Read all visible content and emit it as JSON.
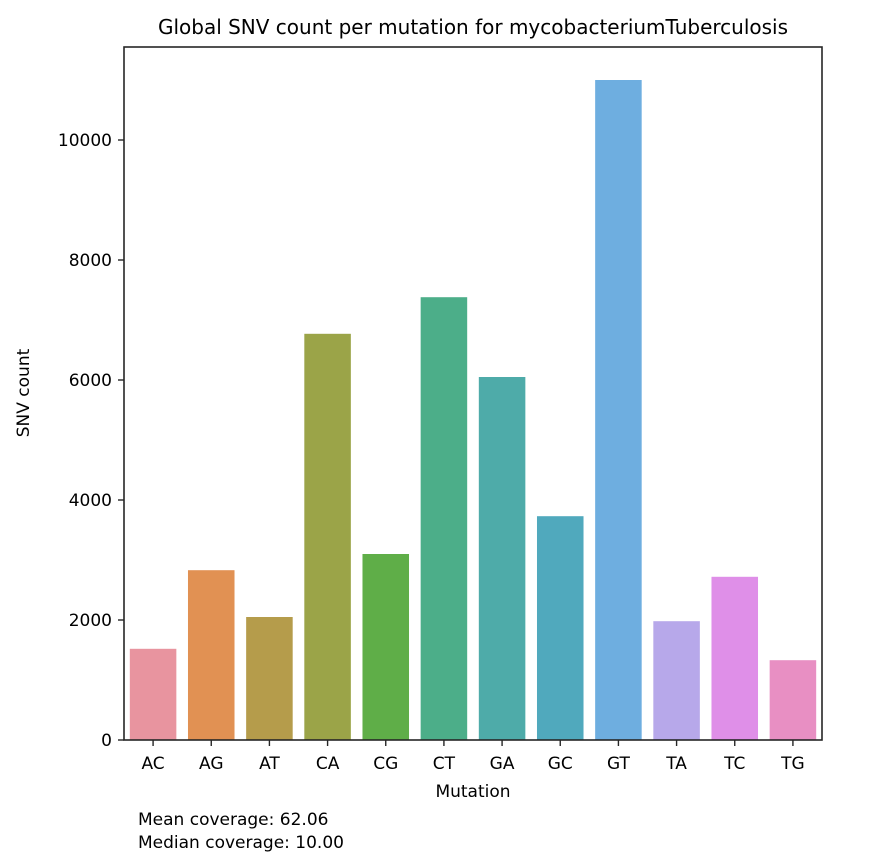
{
  "chart_data": {
    "type": "bar",
    "title": "Global SNV count per mutation for mycobacteriumTuberculosis",
    "xlabel": "Mutation",
    "ylabel": "SNV count",
    "ylim": [
      0,
      11550
    ],
    "yticks": [
      0,
      2000,
      4000,
      6000,
      8000,
      10000
    ],
    "grid": false,
    "categories": [
      "AC",
      "AG",
      "AT",
      "CA",
      "CG",
      "CT",
      "GA",
      "GC",
      "GT",
      "TA",
      "TC",
      "TG"
    ],
    "values": [
      1520,
      2830,
      2050,
      6770,
      3100,
      7380,
      6050,
      3730,
      11000,
      1980,
      2720,
      1330
    ],
    "colors": [
      "#e8949f",
      "#e19153",
      "#b59c4b",
      "#9ba448",
      "#5fae48",
      "#4cae89",
      "#4eaba9",
      "#50a9bd",
      "#6eaee0",
      "#b7a8ea",
      "#df8fe8",
      "#e88fc3"
    ],
    "annotations": [
      "Mean coverage: 62.06",
      "Median coverage: 10.00"
    ]
  }
}
